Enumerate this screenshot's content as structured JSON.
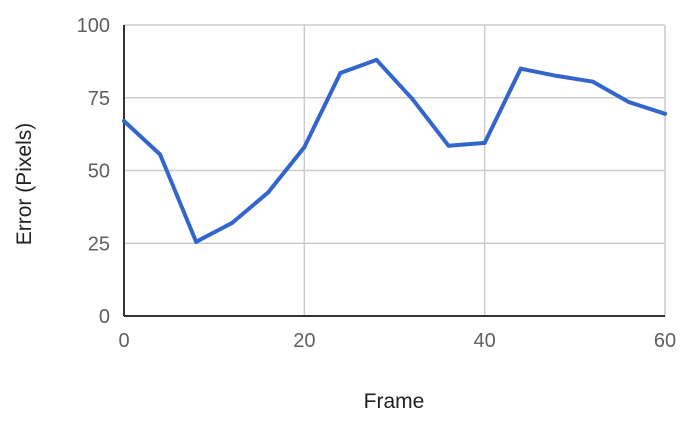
{
  "chart_data": {
    "type": "line",
    "title": "",
    "xlabel": "Frame",
    "ylabel": "Error (Pixels)",
    "xlim": [
      0,
      60
    ],
    "ylim": [
      0,
      100
    ],
    "x_ticks": [
      0,
      20,
      40,
      60
    ],
    "y_ticks": [
      0,
      25,
      50,
      75,
      100
    ],
    "x_tick_labels": [
      "0",
      "20",
      "40",
      "60"
    ],
    "y_tick_labels": [
      "0",
      "25",
      "50",
      "75",
      "100"
    ],
    "grid": true,
    "legend": "none",
    "series": [
      {
        "color": "#3366cc",
        "x": [
          0,
          4,
          8,
          12,
          16,
          20,
          24,
          28,
          32,
          36,
          40,
          44,
          48,
          52,
          56,
          60
        ],
        "y": [
          67,
          55.5,
          25.5,
          32,
          42.5,
          58,
          83.5,
          88,
          74.5,
          58.5,
          59.5,
          85,
          82.5,
          80.5,
          73.5,
          69.5
        ]
      }
    ],
    "colors": {
      "grid": "#cccccc",
      "axis": "#333333"
    }
  }
}
